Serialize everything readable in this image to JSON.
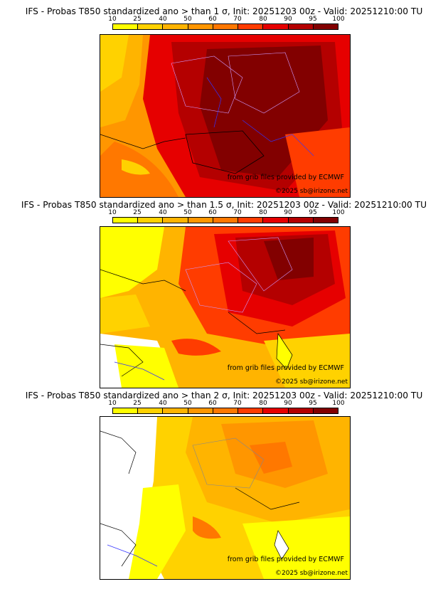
{
  "colorbar": {
    "ticks": [
      "10",
      "25",
      "40",
      "50",
      "60",
      "70",
      "80",
      "90",
      "95",
      "100"
    ],
    "colors": [
      "#ffff00",
      "#ffd200",
      "#ffb400",
      "#ff9600",
      "#ff7800",
      "#ff3c00",
      "#e60000",
      "#b40000",
      "#820000"
    ]
  },
  "panels": [
    {
      "title": "IFS - Probas T850  standardized ano > than 1 σ, Init: 20251203 00z - Valid: 20251210:00 TU",
      "credit": "from grib files provided by ECMWF",
      "copyright": "©2025 sb@irizone.net"
    },
    {
      "title": "IFS - Probas T850  standardized ano > than 1.5 σ, Init: 20251203 00z - Valid: 20251210:00 TU",
      "credit": "from grib files provided by ECMWF",
      "copyright": "©2025 sb@irizone.net"
    },
    {
      "title": "IFS - Probas T850  standardized ano > than 2 σ, Init: 20251203 00z - Valid: 20251210:00 TU",
      "credit": "from grib files provided by ECMWF",
      "copyright": "©2025 sb@irizone.net"
    }
  ]
}
